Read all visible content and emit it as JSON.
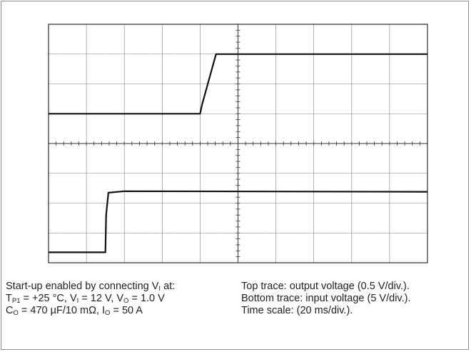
{
  "chart_data": {
    "type": "line",
    "title": "",
    "xlabel": "",
    "ylabel": "",
    "divisions": {
      "x": 10,
      "y": 8
    },
    "x_range_div": [
      0,
      10
    ],
    "y_range_div": [
      0,
      8
    ],
    "grid": true,
    "colors": {
      "trace": "#111111",
      "grid": "#808080",
      "border": "#000000"
    },
    "series": [
      {
        "name": "",
        "role": "output voltage",
        "scale": "0.5 V/div.",
        "points": [
          [
            0,
            5.0
          ],
          [
            4.0,
            5.0
          ],
          [
            4.05,
            5.3
          ],
          [
            4.42,
            7.0
          ],
          [
            10,
            7.0
          ]
        ]
      },
      {
        "name": "",
        "role": "input voltage",
        "scale": "5 V/div.",
        "points": [
          [
            0,
            0.35
          ],
          [
            1.5,
            0.35
          ],
          [
            1.52,
            1.6
          ],
          [
            1.58,
            2.35
          ],
          [
            2.0,
            2.4
          ],
          [
            10,
            2.38
          ]
        ]
      }
    ]
  },
  "caption": {
    "left": {
      "line1": {
        "a": "Start-up enabled by connecting V",
        "s1": "I",
        "b": " at:"
      },
      "line2": {
        "a": "T",
        "s1": "P1",
        "b": " = +25 °C, V",
        "s2": "I",
        "c": " = 12 V, V",
        "s3": "O",
        "d": " = 1.0 V"
      },
      "line3": {
        "a": "C",
        "s1": "O",
        "b": " = 470 µF/10 mΩ, I",
        "s2": "O",
        "c": " = 50 A"
      }
    },
    "right": {
      "line1": "Top trace: output voltage (0.5 V/div.).",
      "line2": "Bottom trace: input voltage (5 V/div.).",
      "line3": "Time scale: (20 ms/div.)."
    }
  }
}
